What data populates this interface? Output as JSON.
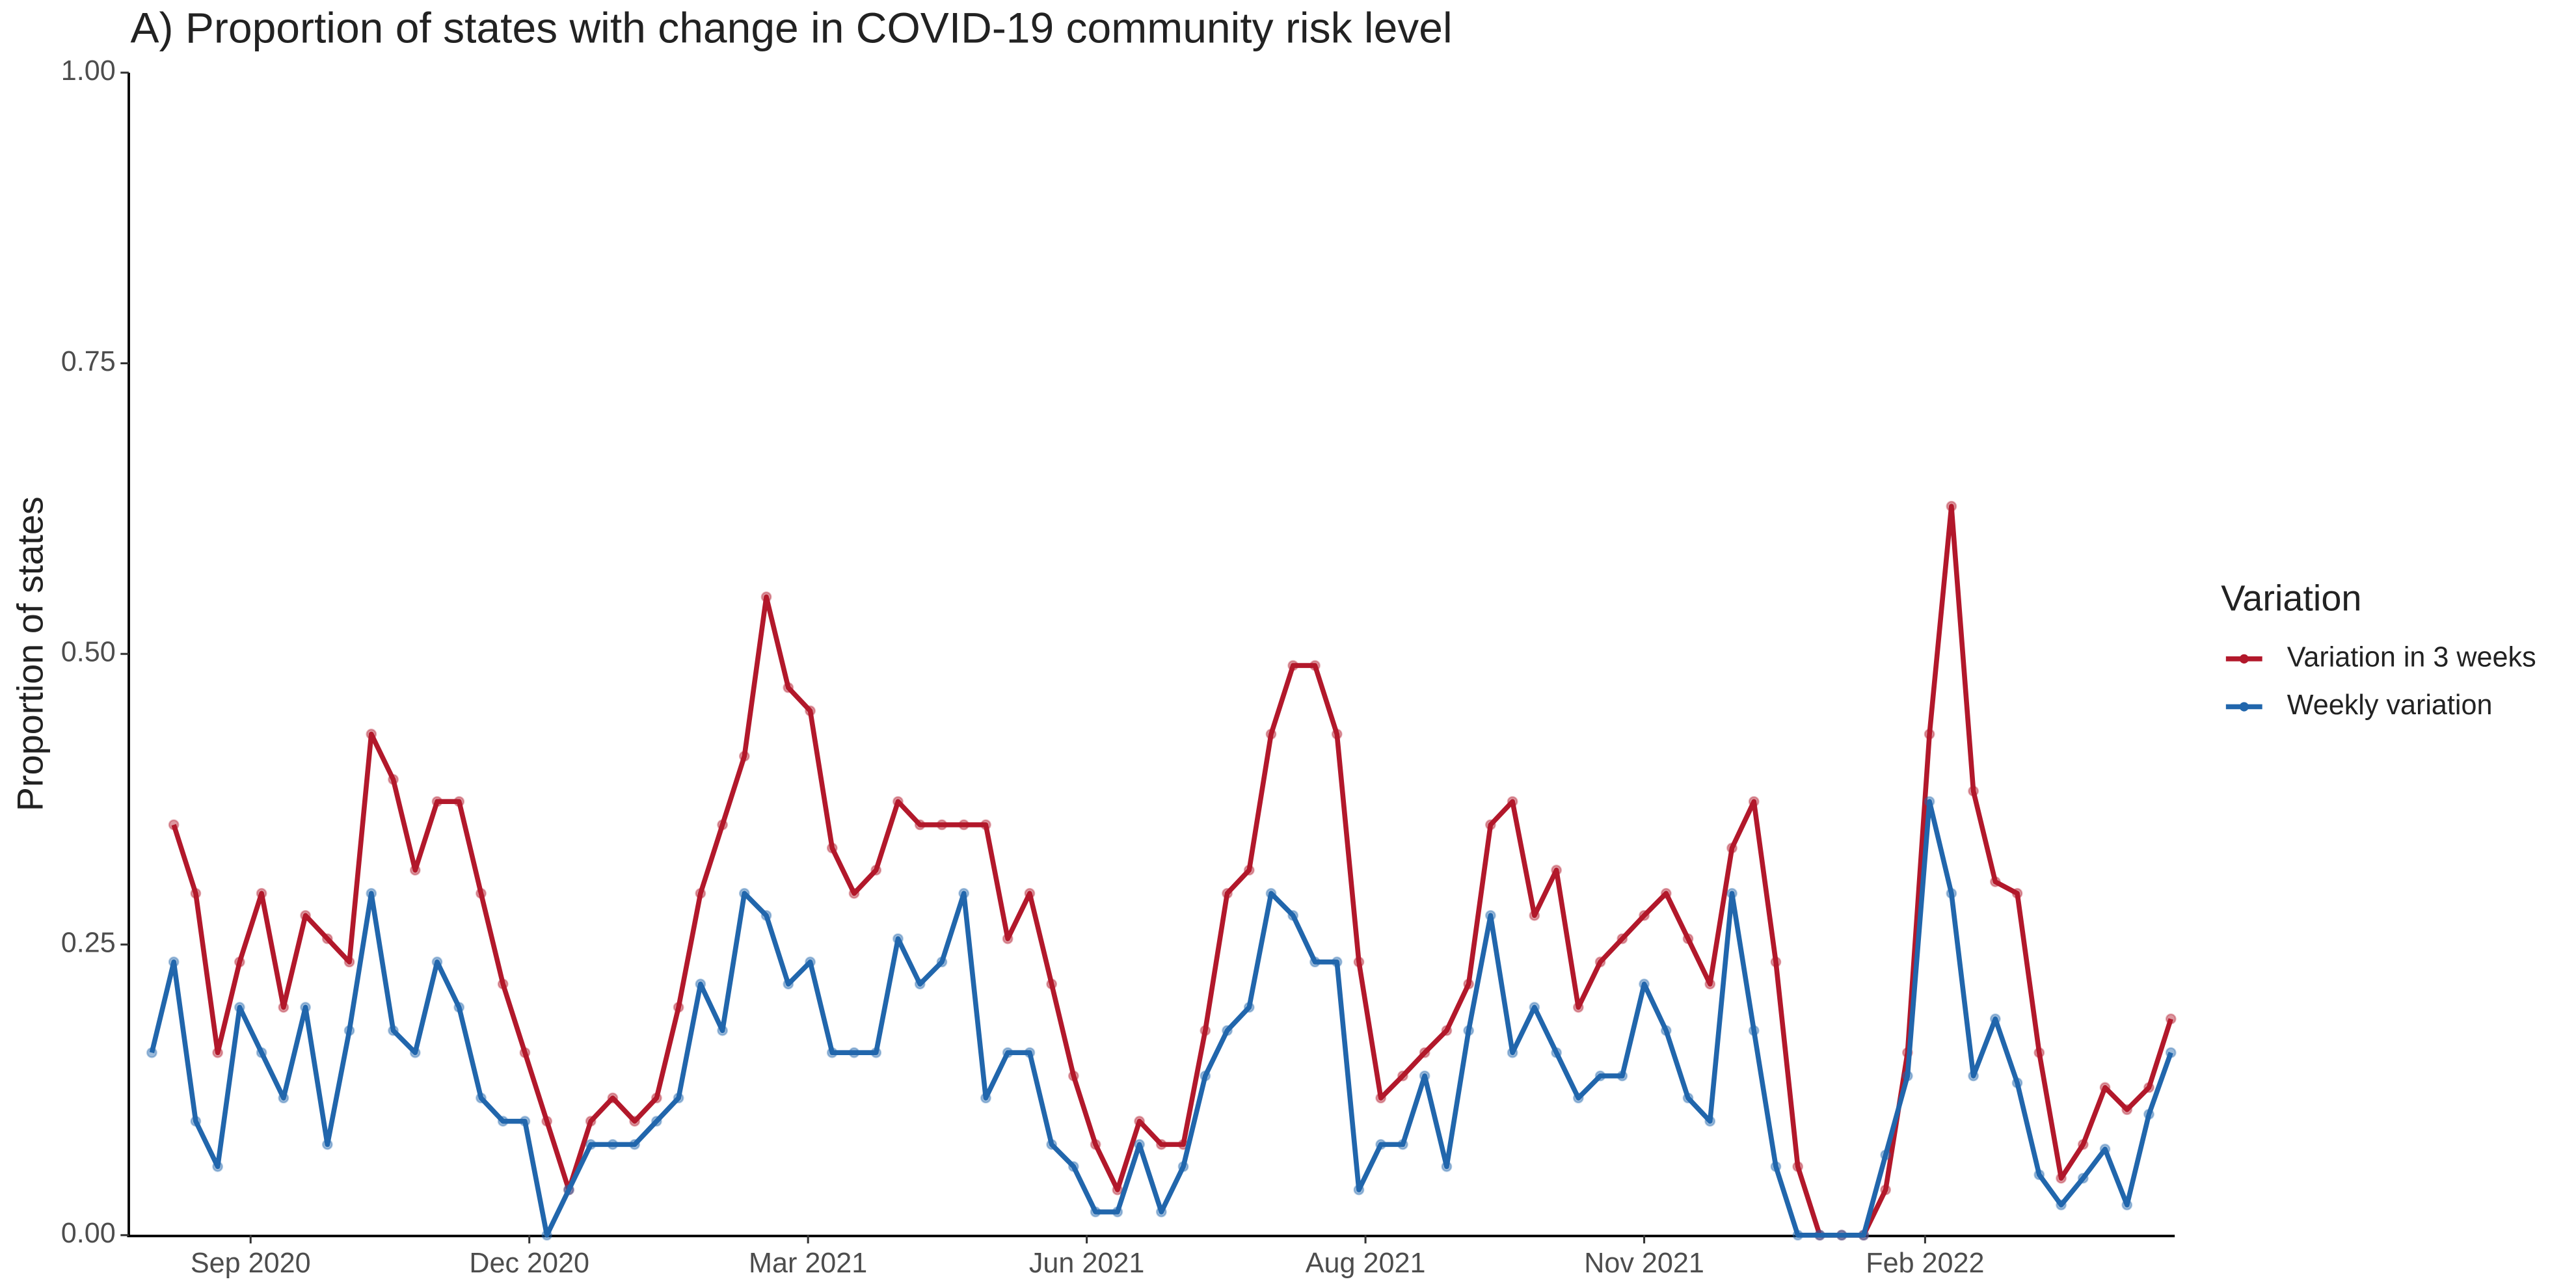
{
  "chart_data": {
    "type": "line",
    "title": "A) Proportion of states with change in COVID-19 community risk level",
    "y_label": "Proportion of states",
    "legend_title": "Variation",
    "x": [
      0,
      1,
      2,
      3,
      4,
      5,
      6,
      7,
      8,
      9,
      10,
      11,
      12,
      13,
      14,
      15,
      16,
      17,
      18,
      19,
      20,
      21,
      22,
      23,
      24,
      25,
      26,
      27,
      28,
      29,
      30,
      31,
      32,
      33,
      34,
      35,
      36,
      37,
      38,
      39,
      40,
      41,
      42,
      43,
      44,
      45,
      46,
      47,
      48,
      49,
      50,
      51,
      52,
      53,
      54,
      55,
      56,
      57,
      58,
      59,
      60,
      61,
      62,
      63,
      64,
      65,
      66,
      67,
      68,
      69,
      70,
      71,
      72,
      73,
      74,
      75,
      76,
      77,
      78,
      79,
      80,
      81,
      82,
      83,
      84,
      85,
      86,
      87,
      88,
      89,
      90,
      91,
      92
    ],
    "series": [
      {
        "name": "Variation in 3 weeks",
        "color": "#b2182b",
        "values": [
          null,
          0.353,
          0.294,
          0.157,
          0.235,
          0.294,
          0.196,
          0.275,
          0.255,
          0.235,
          0.431,
          0.392,
          0.314,
          0.373,
          0.373,
          0.294,
          0.216,
          0.157,
          0.098,
          0.039,
          0.098,
          0.118,
          0.098,
          0.118,
          0.196,
          0.294,
          0.353,
          0.412,
          0.549,
          0.471,
          0.451,
          0.333,
          0.294,
          0.314,
          0.373,
          0.353,
          0.353,
          0.353,
          0.353,
          0.255,
          0.294,
          0.216,
          0.137,
          0.078,
          0.039,
          0.098,
          0.078,
          0.078,
          0.176,
          0.294,
          0.314,
          0.431,
          0.49,
          0.49,
          0.431,
          0.235,
          0.118,
          0.137,
          0.157,
          0.176,
          0.216,
          0.353,
          0.373,
          0.275,
          0.314,
          0.196,
          0.235,
          0.255,
          0.275,
          0.294,
          0.255,
          0.216,
          0.333,
          0.373,
          0.235,
          0.059,
          0,
          0,
          0,
          0.039,
          0.157,
          0.431,
          0.627,
          0.382,
          0.304,
          0.294,
          0.157,
          0.049,
          0.078,
          0.127,
          0.108,
          0.127,
          0.186
        ]
      },
      {
        "name": "Weekly variation",
        "color": "#2166ac",
        "values": [
          0.157,
          0.235,
          0.098,
          0.059,
          0.196,
          0.157,
          0.118,
          0.196,
          0.078,
          0.176,
          0.294,
          0.176,
          0.157,
          0.235,
          0.196,
          0.118,
          0.098,
          0.098,
          0,
          0.039,
          0.078,
          0.078,
          0.078,
          0.098,
          0.118,
          0.216,
          0.176,
          0.294,
          0.275,
          0.216,
          0.235,
          0.157,
          0.157,
          0.157,
          0.255,
          0.216,
          0.235,
          0.294,
          0.118,
          0.157,
          0.157,
          0.078,
          0.059,
          0.02,
          0.02,
          0.078,
          0.02,
          0.059,
          0.137,
          0.176,
          0.196,
          0.294,
          0.275,
          0.235,
          0.235,
          0.039,
          0.078,
          0.078,
          0.137,
          0.059,
          0.176,
          0.275,
          0.157,
          0.196,
          0.157,
          0.118,
          0.137,
          0.137,
          0.216,
          0.176,
          0.118,
          0.098,
          0.294,
          0.176,
          0.059,
          0,
          0,
          0,
          0,
          0.069,
          0.137,
          0.373,
          0.294,
          0.137,
          0.186,
          0.131,
          0.052,
          0.026,
          0.049,
          0.074,
          0.026,
          0.104,
          0.157
        ]
      }
    ],
    "xlim": [
      -1.05,
      92.1
    ],
    "xticks": [
      {
        "value": 4.5,
        "label": "Sep 2020"
      },
      {
        "value": 17.2,
        "label": "Dec 2020"
      },
      {
        "value": 29.9,
        "label": "Mar 2021"
      },
      {
        "value": 42.6,
        "label": "Jun 2021"
      },
      {
        "value": 55.3,
        "label": "Aug 2021"
      },
      {
        "value": 68.0,
        "label": "Nov 2021"
      },
      {
        "value": 80.8,
        "label": "Feb 2022"
      }
    ],
    "ylim": [
      0,
      1
    ],
    "yticks": [
      {
        "value": 0,
        "label": "0.00"
      },
      {
        "value": 0.25,
        "label": "0.25"
      },
      {
        "value": 0.5,
        "label": "0.50"
      },
      {
        "value": 0.75,
        "label": "0.75"
      },
      {
        "value": 1,
        "label": "1.00"
      }
    ],
    "legend": "right"
  }
}
